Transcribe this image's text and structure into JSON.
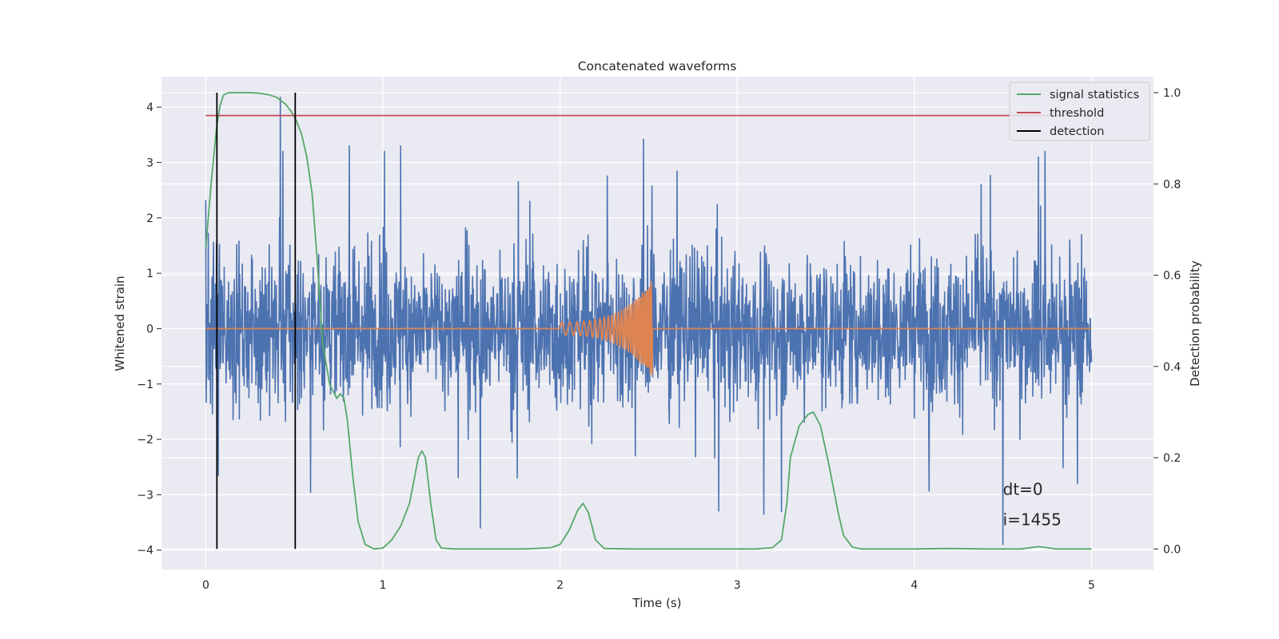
{
  "chart_data": {
    "type": "line",
    "title": "Concatenated waveforms",
    "xlabel": "Time (s)",
    "ylabel": "Whitened strain",
    "y2label": "Detection probability",
    "xlim": [
      -0.25,
      5.35
    ],
    "ylim": [
      -4.35,
      4.55
    ],
    "y2lim": [
      -0.045,
      1.035
    ],
    "xticks": [
      0,
      1,
      2,
      3,
      4,
      5
    ],
    "xtick_labels": [
      "0",
      "1",
      "2",
      "3",
      "4",
      "5"
    ],
    "yticks": [
      -4,
      -3,
      -2,
      -1,
      0,
      1,
      2,
      3,
      4
    ],
    "ytick_labels": [
      "−4",
      "−3",
      "−2",
      "−1",
      "0",
      "1",
      "2",
      "3",
      "4"
    ],
    "y2ticks": [
      0,
      0.2,
      0.4,
      0.6,
      0.8,
      1.0
    ],
    "y2tick_labels": [
      "0.0",
      "0.2",
      "0.4",
      "0.6",
      "0.8",
      "1.0"
    ],
    "grid": true,
    "legend_position": "top-right",
    "background": "#EAEAF2",
    "series": [
      {
        "name": "",
        "axis": "left",
        "color": "#4C72B0",
        "kind": "noise",
        "x_range": [
          0,
          5
        ],
        "sample_count": 2400,
        "notable_peaks": [
          {
            "x": 0.0,
            "y": 2.32
          },
          {
            "x": 0.42,
            "y": 4.18
          },
          {
            "x": 0.07,
            "y": -2.65
          },
          {
            "x": 0.81,
            "y": 3.3
          },
          {
            "x": 1.1,
            "y": 3.3
          },
          {
            "x": 2.47,
            "y": 3.42
          },
          {
            "x": 1.55,
            "y": -3.6
          },
          {
            "x": 3.15,
            "y": -3.35
          },
          {
            "x": 4.5,
            "y": -3.9
          },
          {
            "x": 4.7,
            "y": 3.1
          },
          {
            "x": 4.92,
            "y": -2.8
          }
        ]
      },
      {
        "name": "",
        "axis": "left",
        "color": "#DD8452",
        "kind": "chirp",
        "baseline": 0,
        "chirp_start": 2.0,
        "chirp_end": 2.52,
        "start_amplitude": 0.12,
        "peak_amplitude": 0.88,
        "start_frequency_hz": 22,
        "end_frequency_hz": 110,
        "x_range": [
          0,
          5
        ]
      },
      {
        "name": "signal statistics",
        "axis": "right",
        "color": "#55A868",
        "x": [
          0.0,
          0.03,
          0.06,
          0.08,
          0.1,
          0.13,
          0.17,
          0.2,
          0.25,
          0.3,
          0.35,
          0.4,
          0.45,
          0.48,
          0.51,
          0.54,
          0.57,
          0.6,
          0.63,
          0.66,
          0.7,
          0.74,
          0.76,
          0.78,
          0.8,
          0.83,
          0.86,
          0.9,
          0.95,
          1.0,
          1.05,
          1.1,
          1.15,
          1.2,
          1.22,
          1.24,
          1.27,
          1.3,
          1.33,
          1.4,
          1.5,
          1.6,
          1.8,
          1.95,
          2.0,
          2.05,
          2.1,
          2.13,
          2.16,
          2.2,
          2.25,
          2.4,
          2.6,
          2.8,
          3.0,
          3.1,
          3.2,
          3.25,
          3.28,
          3.3,
          3.35,
          3.4,
          3.43,
          3.47,
          3.52,
          3.57,
          3.6,
          3.65,
          3.7,
          3.8,
          4.0,
          4.2,
          4.4,
          4.6,
          4.7,
          4.75,
          4.8,
          5.0
        ],
        "values": [
          0.66,
          0.8,
          0.92,
          0.97,
          0.995,
          1.0,
          1.0,
          1.0,
          1.0,
          0.999,
          0.996,
          0.99,
          0.975,
          0.96,
          0.94,
          0.91,
          0.86,
          0.78,
          0.63,
          0.45,
          0.36,
          0.33,
          0.34,
          0.33,
          0.28,
          0.16,
          0.06,
          0.01,
          0.0,
          0.002,
          0.02,
          0.05,
          0.1,
          0.2,
          0.215,
          0.2,
          0.1,
          0.02,
          0.002,
          0.0,
          0.0,
          0.0,
          0.0,
          0.003,
          0.01,
          0.04,
          0.085,
          0.1,
          0.08,
          0.02,
          0.001,
          0.0,
          0.0,
          0.0,
          0.0,
          0.0,
          0.003,
          0.02,
          0.1,
          0.2,
          0.27,
          0.295,
          0.3,
          0.27,
          0.18,
          0.08,
          0.03,
          0.004,
          0.0,
          0.0,
          0.0,
          0.001,
          0.0,
          0.0,
          0.005,
          0.003,
          0.0,
          0.0
        ]
      },
      {
        "name": "threshold",
        "axis": "right",
        "color": "#C44E52",
        "x": [
          0,
          5
        ],
        "values": [
          0.95,
          0.95
        ]
      },
      {
        "name": "detection",
        "axis": "right",
        "color": "#000000",
        "kind": "vlines",
        "x": [
          0.063,
          0.505
        ],
        "y_range": [
          0.0,
          1.0
        ]
      }
    ],
    "annotations": [
      {
        "x": 4.5,
        "y": -3.0,
        "text": "dt=0"
      },
      {
        "x": 4.5,
        "y": -3.55,
        "text": "i=1455"
      }
    ]
  }
}
